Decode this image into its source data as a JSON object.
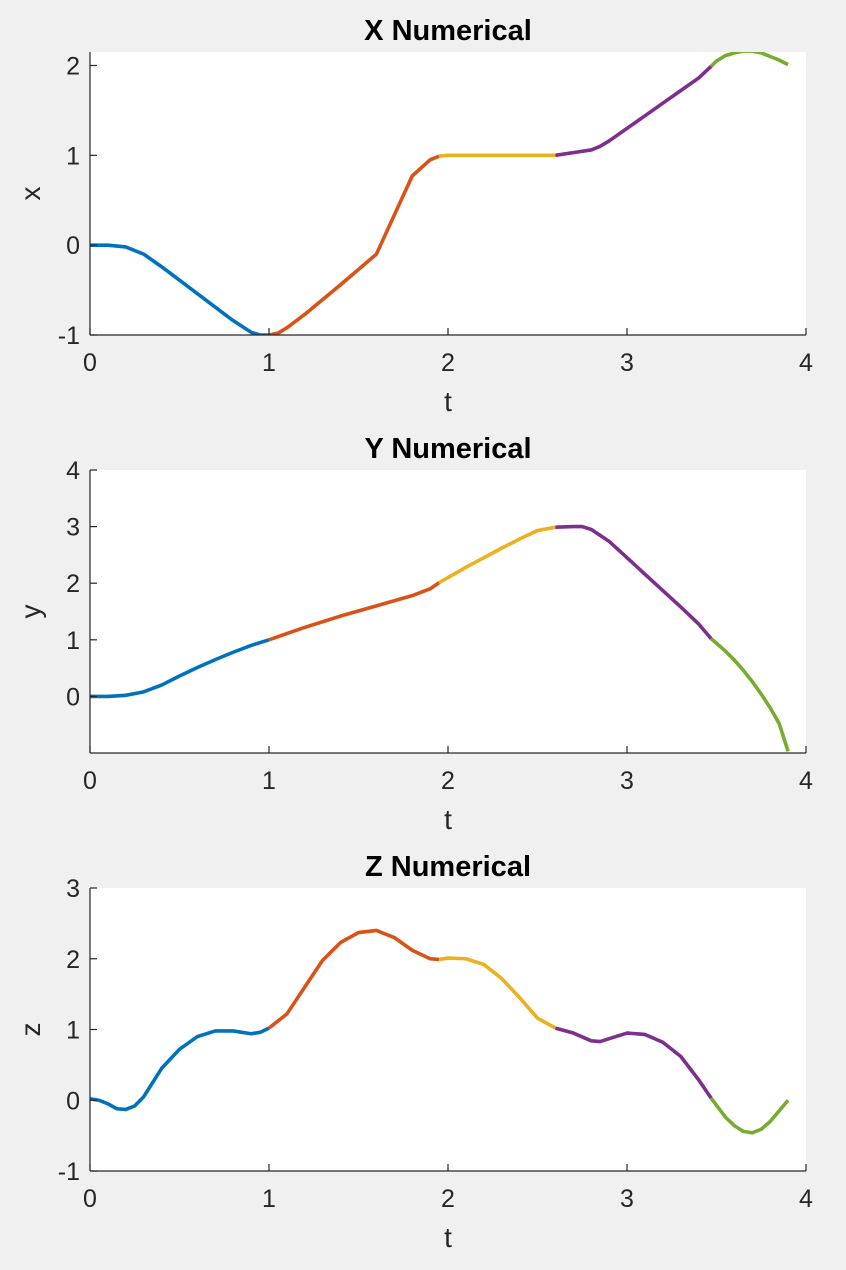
{
  "chart_data": [
    {
      "type": "line",
      "title": "X Numerical",
      "xlabel": "t",
      "ylabel": "x",
      "xlim": [
        0,
        4
      ],
      "ylim": [
        -1,
        2.15
      ],
      "xticks": [
        0,
        1,
        2,
        3,
        4
      ],
      "yticks": [
        -1,
        0,
        1,
        2
      ],
      "grid": false,
      "legend": "none",
      "series": [
        {
          "color": "#0072BD",
          "x": [
            0,
            0.1,
            0.2,
            0.3,
            0.4,
            0.5,
            0.6,
            0.7,
            0.8,
            0.9,
            0.95,
            1.0
          ],
          "y": [
            0,
            0,
            -0.02,
            -0.1,
            -0.24,
            -0.39,
            -0.54,
            -0.69,
            -0.84,
            -0.97,
            -1.0,
            -1.0
          ]
        },
        {
          "color": "#D95319",
          "x": [
            1.0,
            1.05,
            1.1,
            1.2,
            1.4,
            1.6,
            1.8,
            1.9,
            1.95
          ],
          "y": [
            -1.0,
            -0.98,
            -0.92,
            -0.77,
            -0.44,
            -0.1,
            0.77,
            0.95,
            0.99
          ]
        },
        {
          "color": "#EDB120",
          "x": [
            1.95,
            2.0,
            2.2,
            2.4,
            2.6
          ],
          "y": [
            0.99,
            1.0,
            1.0,
            1.0,
            1.0
          ]
        },
        {
          "color": "#7E2F8E",
          "x": [
            2.6,
            2.7,
            2.8,
            2.85,
            2.9,
            3.0,
            3.1,
            3.2,
            3.3,
            3.4,
            3.47
          ],
          "y": [
            1.0,
            1.03,
            1.06,
            1.1,
            1.16,
            1.3,
            1.44,
            1.58,
            1.72,
            1.86,
            1.99
          ]
        },
        {
          "color": "#77AC30",
          "x": [
            3.47,
            3.5,
            3.55,
            3.6,
            3.65,
            3.7,
            3.75,
            3.8,
            3.85,
            3.9
          ],
          "y": [
            1.99,
            2.05,
            2.11,
            2.14,
            2.16,
            2.16,
            2.14,
            2.1,
            2.06,
            2.01
          ]
        }
      ]
    },
    {
      "type": "line",
      "title": "Y Numerical",
      "xlabel": "t",
      "ylabel": "y",
      "xlim": [
        0,
        4
      ],
      "ylim": [
        -1,
        4
      ],
      "xticks": [
        0,
        1,
        2,
        3,
        4
      ],
      "yticks": [
        0,
        1,
        2,
        3,
        4
      ],
      "grid": false,
      "legend": "none",
      "series": [
        {
          "color": "#0072BD",
          "x": [
            0,
            0.1,
            0.2,
            0.3,
            0.4,
            0.5,
            0.6,
            0.7,
            0.8,
            0.9,
            1.0
          ],
          "y": [
            0,
            0,
            0.02,
            0.08,
            0.2,
            0.36,
            0.51,
            0.65,
            0.78,
            0.9,
            1.0
          ]
        },
        {
          "color": "#D95319",
          "x": [
            1.0,
            1.2,
            1.4,
            1.6,
            1.8,
            1.9,
            1.95
          ],
          "y": [
            1.0,
            1.22,
            1.42,
            1.6,
            1.78,
            1.9,
            2.01
          ]
        },
        {
          "color": "#EDB120",
          "x": [
            1.95,
            2.1,
            2.2,
            2.3,
            2.4,
            2.5,
            2.6
          ],
          "y": [
            2.01,
            2.28,
            2.45,
            2.62,
            2.78,
            2.93,
            2.99
          ]
        },
        {
          "color": "#7E2F8E",
          "x": [
            2.6,
            2.7,
            2.75,
            2.8,
            2.9,
            3.0,
            3.1,
            3.2,
            3.3,
            3.4,
            3.47
          ],
          "y": [
            2.99,
            3.0,
            3.0,
            2.95,
            2.74,
            2.45,
            2.16,
            1.87,
            1.58,
            1.28,
            1.02
          ]
        },
        {
          "color": "#77AC30",
          "x": [
            3.47,
            3.55,
            3.6,
            3.65,
            3.7,
            3.75,
            3.8,
            3.85,
            3.9
          ],
          "y": [
            1.02,
            0.8,
            0.64,
            0.46,
            0.26,
            0.04,
            -0.2,
            -0.48,
            -0.97
          ]
        }
      ]
    },
    {
      "type": "line",
      "title": "Z Numerical",
      "xlabel": "t",
      "ylabel": "z",
      "xlim": [
        0,
        4
      ],
      "ylim": [
        -1,
        3
      ],
      "xticks": [
        0,
        1,
        2,
        3,
        4
      ],
      "yticks": [
        -1,
        0,
        1,
        2,
        3
      ],
      "grid": false,
      "legend": "none",
      "series": [
        {
          "color": "#0072BD",
          "x": [
            0,
            0.05,
            0.1,
            0.15,
            0.2,
            0.25,
            0.3,
            0.35,
            0.4,
            0.5,
            0.6,
            0.7,
            0.8,
            0.9,
            0.95,
            1.0
          ],
          "y": [
            0.02,
            0.0,
            -0.05,
            -0.12,
            -0.13,
            -0.08,
            0.05,
            0.25,
            0.45,
            0.72,
            0.9,
            0.98,
            0.98,
            0.94,
            0.96,
            1.02
          ]
        },
        {
          "color": "#D95319",
          "x": [
            1.0,
            1.1,
            1.2,
            1.3,
            1.4,
            1.5,
            1.6,
            1.7,
            1.8,
            1.9,
            1.95
          ],
          "y": [
            1.02,
            1.22,
            1.6,
            1.98,
            2.23,
            2.37,
            2.4,
            2.3,
            2.12,
            2.0,
            1.99
          ]
        },
        {
          "color": "#EDB120",
          "x": [
            1.95,
            2.0,
            2.1,
            2.2,
            2.3,
            2.4,
            2.5,
            2.6
          ],
          "y": [
            1.99,
            2.01,
            2.0,
            1.92,
            1.72,
            1.45,
            1.16,
            1.02
          ]
        },
        {
          "color": "#7E2F8E",
          "x": [
            2.6,
            2.7,
            2.8,
            2.85,
            2.9,
            3.0,
            3.1,
            3.2,
            3.3,
            3.4,
            3.47
          ],
          "y": [
            1.02,
            0.95,
            0.84,
            0.83,
            0.87,
            0.95,
            0.93,
            0.82,
            0.62,
            0.29,
            0.03
          ]
        },
        {
          "color": "#77AC30",
          "x": [
            3.47,
            3.55,
            3.6,
            3.65,
            3.7,
            3.75,
            3.8,
            3.85,
            3.9
          ],
          "y": [
            0.03,
            -0.24,
            -0.36,
            -0.44,
            -0.46,
            -0.41,
            -0.3,
            -0.15,
            0.0
          ]
        }
      ]
    }
  ]
}
